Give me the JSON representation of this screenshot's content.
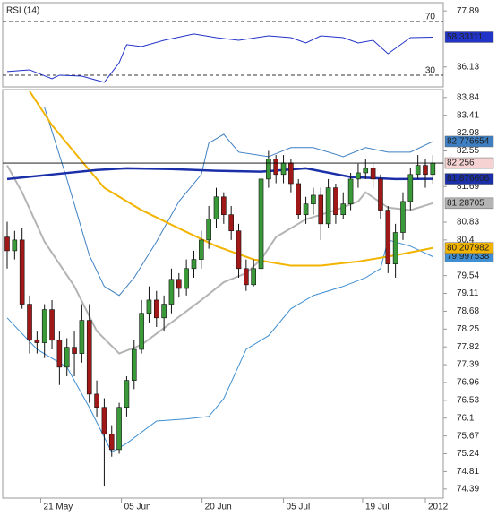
{
  "chart_data": [
    {
      "type": "candlestick",
      "xlim": [
        -0.6,
        58.4
      ],
      "ylim": [
        74.17,
        84.03
      ],
      "yticks": [
        83.84,
        83.41,
        82.98,
        82.55,
        81.69,
        80.83,
        80.4,
        79.54,
        79.11,
        78.68,
        78.25,
        77.82,
        77.39,
        76.96,
        76.53,
        76.1,
        75.67,
        75.24,
        74.81,
        74.39
      ],
      "xticks": [
        {
          "value": 4.5,
          "label": "21 May"
        },
        {
          "value": 15.3,
          "label": "05 Jun"
        },
        {
          "value": 26.1,
          "label": "20 Jun"
        },
        {
          "value": 37,
          "label": "05 Jul"
        },
        {
          "value": 47.6,
          "label": "19 Jul"
        },
        {
          "value": 56,
          "label": "2012"
        }
      ],
      "up_color": "#3a9a3a",
      "down_color": "#a01818",
      "last_price": 82.256,
      "last_price_color": "#f6d2d2",
      "open": [
        80.47,
        80.14,
        80.4,
        78.85,
        77.98,
        77.92,
        78.72,
        77.98,
        77.33,
        77.81,
        77.66,
        78.46,
        76.68,
        76.36,
        75.71,
        75.34,
        76.36,
        77.01,
        77.76,
        78.63,
        78.95,
        78.52,
        78.85,
        79.45,
        79.23,
        79.71,
        79.93,
        80.4,
        80.9,
        81.44,
        81.01,
        80.62,
        79.71,
        79.32,
        79.71,
        81.87,
        82.35,
        81.98,
        82.26,
        81.76,
        81.01,
        81.27,
        81.48,
        80.79,
        81.66,
        81.01,
        81.27,
        81.87,
        82.02,
        82.13,
        81.87,
        81.12,
        79.82,
        80.58,
        81.33,
        81.98,
        82.2,
        81.98
      ],
      "high": [
        80.84,
        80.62,
        80.68,
        79.06,
        78.19,
        78.85,
        78.95,
        78.19,
        78.03,
        78.19,
        78.85,
        78.85,
        77.01,
        76.58,
        75.93,
        76.47,
        77.11,
        77.98,
        78.95,
        79.28,
        79.17,
        79.06,
        79.71,
        79.6,
        79.93,
        80.14,
        80.62,
        81.22,
        81.66,
        81.55,
        81.22,
        80.79,
        79.93,
        79.93,
        82.02,
        82.55,
        82.45,
        82.45,
        82.35,
        81.87,
        81.44,
        81.66,
        81.66,
        81.87,
        81.76,
        81.55,
        82.02,
        82.24,
        82.35,
        82.24,
        81.98,
        81.22,
        80.79,
        81.55,
        82.13,
        82.45,
        82.35,
        82.45
      ],
      "low": [
        79.71,
        79.93,
        78.74,
        77.66,
        77.66,
        77.55,
        77.76,
        76.9,
        77.11,
        77.11,
        77.44,
        76.47,
        76.14,
        74.45,
        75.17,
        75.24,
        76.14,
        76.8,
        77.66,
        78.41,
        78.3,
        78.19,
        78.63,
        79.01,
        79.06,
        79.49,
        79.71,
        80.19,
        80.68,
        80.79,
        80.4,
        79.49,
        79.17,
        79.28,
        79.49,
        81.66,
        81.77,
        81.77,
        81.55,
        80.9,
        80.79,
        81.01,
        80.4,
        80.68,
        80.79,
        80.9,
        81.12,
        81.66,
        81.87,
        81.66,
        80.9,
        79.6,
        79.49,
        80.4,
        81.12,
        81.87,
        81.66,
        81.76
      ],
      "close": [
        80.14,
        80.4,
        78.85,
        77.98,
        77.92,
        78.72,
        77.98,
        77.33,
        77.81,
        77.66,
        78.46,
        76.68,
        76.36,
        75.71,
        75.34,
        76.36,
        77.01,
        77.76,
        78.63,
        78.95,
        78.52,
        78.85,
        79.45,
        79.23,
        79.71,
        79.93,
        80.4,
        80.9,
        81.44,
        81.01,
        80.62,
        79.71,
        79.32,
        79.71,
        81.87,
        82.35,
        81.98,
        82.26,
        81.76,
        81.01,
        81.27,
        81.48,
        80.79,
        81.66,
        81.01,
        81.27,
        81.87,
        82.02,
        82.13,
        81.87,
        81.12,
        79.82,
        80.58,
        81.33,
        81.98,
        82.2,
        81.98,
        82.256
      ],
      "series": [
        {
          "color": "#3d7fc2",
          "width": 1,
          "x": [
            5,
            8,
            11,
            13,
            15,
            17,
            20,
            23,
            26,
            27,
            29,
            31,
            35,
            38,
            41,
            45,
            48,
            51,
            54,
            57
          ],
          "values": [
            83.6,
            81.87,
            80.03,
            79.28,
            79.06,
            79.49,
            80.36,
            81.33,
            81.98,
            82.74,
            82.95,
            82.52,
            82.41,
            82.63,
            82.63,
            82.41,
            82.63,
            82.52,
            82.52,
            82.776654
          ],
          "last": 82.776654
        },
        {
          "color": "#b4b4b4",
          "width": 2,
          "x": [
            0,
            2,
            5,
            9,
            12,
            15,
            18,
            22,
            26,
            29,
            32,
            34,
            36,
            40,
            44,
            47,
            48,
            51,
            54,
            57
          ],
          "values": [
            82.2,
            81.55,
            80.36,
            79.28,
            78.2,
            77.66,
            77.87,
            78.41,
            78.95,
            79.38,
            79.6,
            79.93,
            80.47,
            80.9,
            81.12,
            81.33,
            81.55,
            81.18,
            81.12,
            81.28705
          ],
          "last": 81.28705
        },
        {
          "color": "#3f8fd2",
          "width": 1,
          "x": [
            0,
            4,
            8,
            11,
            14,
            16,
            20,
            24,
            27,
            29,
            32,
            35,
            38,
            41,
            45,
            48,
            50,
            51,
            54,
            57
          ],
          "values": [
            78.52,
            77.76,
            77.33,
            76.36,
            75.28,
            75.49,
            76.03,
            76.08,
            76.14,
            76.57,
            77.76,
            78.09,
            78.74,
            79.06,
            79.28,
            79.49,
            79.71,
            80.4,
            80.25,
            79.997538
          ],
          "last": 79.997538
        },
        {
          "color": "#f2b400",
          "width": 2,
          "x": [
            3,
            6,
            10,
            13,
            18,
            23,
            28,
            33,
            38,
            42,
            47,
            52,
            57
          ],
          "values": [
            83.99,
            83.17,
            82.3,
            81.66,
            81.12,
            80.68,
            80.25,
            79.93,
            79.78,
            79.78,
            79.88,
            80.03,
            80.207982
          ],
          "last": 80.207982
        },
        {
          "color": "#1a2fa8",
          "width": 2.5,
          "x": [
            0,
            6,
            12,
            16,
            22,
            28,
            34,
            40,
            46,
            52,
            57
          ],
          "values": [
            81.87,
            81.98,
            82.09,
            82.13,
            82.11,
            82.07,
            82.05,
            82.13,
            81.92,
            81.87,
            81.876606
          ],
          "last": 81.876606
        }
      ]
    },
    {
      "type": "line",
      "title": "RSI (14)",
      "color": "#2233c8",
      "last_color": "#2233c8",
      "xlim": [
        -0.6,
        58.4
      ],
      "ylim": [
        21.3,
        84
      ],
      "yticks": [
        77.89,
        36.13
      ],
      "levels": [
        70,
        30
      ],
      "x": [
        0,
        3,
        6,
        7,
        10,
        13,
        15,
        16,
        18,
        21,
        25,
        28,
        31,
        35,
        38,
        40,
        42,
        45,
        47,
        49,
        51,
        53,
        54,
        57
      ],
      "values": [
        32.7,
        34,
        27.3,
        30,
        29.3,
        24.7,
        39.3,
        52.7,
        51.3,
        56,
        60.7,
        58,
        56,
        59.3,
        58,
        54,
        59.3,
        58,
        54,
        56,
        46,
        54,
        58,
        58.33111
      ],
      "last": 58.33111
    }
  ]
}
